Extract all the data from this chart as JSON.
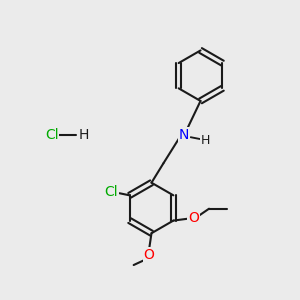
{
  "background_color": "#ebebeb",
  "bond_color": "#1a1a1a",
  "bond_width": 1.5,
  "atom_colors": {
    "N": "#0000ff",
    "Cl_green": "#00aa00",
    "Cl_gray": "#1a1a1a",
    "O": "#ff0000",
    "C": "#1a1a1a",
    "H": "#1a1a1a"
  },
  "font_size_atoms": 9,
  "font_size_hcl": 9,
  "title": ""
}
